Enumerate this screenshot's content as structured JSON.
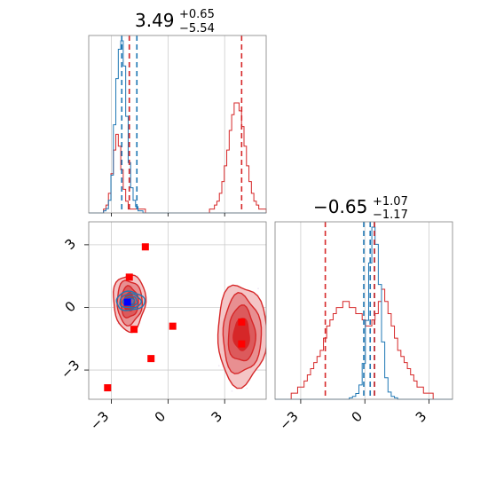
{
  "chart_data": {
    "type": "corner",
    "colors": {
      "red": "#d62728",
      "blue": "#1f77b4",
      "marker": "#ff0000",
      "marker_blue": "#0000ff"
    },
    "parameters": [
      {
        "title_value": "3.49",
        "title_plus": "+0.65",
        "title_minus": "−5.54"
      },
      {
        "title_value": "−0.65",
        "title_plus": "+1.07",
        "title_minus": "−1.17"
      }
    ],
    "panels": [
      {
        "id": "hist-x",
        "type": "histogram",
        "xlim": [
          -4.2,
          5.2
        ],
        "grid_x": [
          -3,
          0,
          3
        ],
        "red_quantiles": [
          -2.05,
          3.9
        ],
        "blue_quantiles": [
          -2.45,
          -2.05,
          -1.65
        ],
        "red_hist": {
          "x0": -4.2,
          "x1": 5.2,
          "counts": [
            0,
            0,
            0,
            0,
            0,
            0,
            1,
            2,
            5,
            10,
            16,
            20,
            17,
            11,
            6,
            3,
            1,
            1,
            1,
            1,
            1,
            1,
            1,
            0,
            0,
            0,
            0,
            0,
            0,
            0,
            0,
            0,
            0,
            0,
            0,
            0,
            0,
            0,
            0,
            0,
            0,
            0,
            0,
            0,
            0,
            0,
            0,
            0,
            0,
            1,
            1,
            2,
            3,
            5,
            8,
            12,
            16,
            21,
            25,
            28,
            28,
            26,
            22,
            17,
            12,
            8,
            5,
            3,
            2,
            1,
            1,
            1
          ]
        },
        "blue_hist": {
          "x0": -4.2,
          "x1": 5.2,
          "counts": [
            0,
            0,
            0,
            0,
            0,
            0,
            1,
            2,
            6,
            18,
            42,
            64,
            78,
            82,
            70,
            46,
            24,
            12,
            6,
            3,
            1,
            1,
            0,
            0,
            0,
            0,
            0,
            0,
            0,
            0,
            0,
            0,
            0,
            0,
            0,
            0,
            0,
            0,
            0,
            0,
            0,
            0,
            0,
            0,
            0,
            0,
            0,
            0,
            0,
            0,
            0,
            0,
            0,
            0,
            0,
            0,
            0,
            0,
            0,
            0,
            0,
            0,
            0,
            0,
            0,
            0,
            0,
            0,
            0,
            0,
            0,
            0
          ]
        }
      },
      {
        "id": "scatter-xy",
        "type": "2d-density",
        "xlim": [
          -4.2,
          5.2
        ],
        "ylim": [
          -4.4,
          4.1
        ],
        "x_ticks": [
          -3,
          0,
          3
        ],
        "y_ticks": [
          -3,
          0,
          3
        ],
        "x_tick_labels": [
          "−3",
          "0",
          "3"
        ],
        "y_tick_labels": [
          "−3",
          "0",
          "3"
        ],
        "red_modes": [
          {
            "cx": -2.05,
            "cy": 0.25,
            "sx": 0.85,
            "sy": 1.35
          },
          {
            "cx": 3.9,
            "cy": -1.3,
            "sx": 1.3,
            "sy": 2.4
          }
        ],
        "blue_mode": {
          "cx": -2.0,
          "cy": 0.3,
          "sx": 0.75,
          "sy": 0.45
        },
        "red_markers": [
          {
            "x": -1.2,
            "y": 2.9
          },
          {
            "x": -2.05,
            "y": 1.45
          },
          {
            "x": -1.8,
            "y": -1.05
          },
          {
            "x": 0.25,
            "y": -0.9
          },
          {
            "x": -0.9,
            "y": -2.45
          },
          {
            "x": -3.2,
            "y": -3.85
          },
          {
            "x": 3.9,
            "y": -0.7
          },
          {
            "x": 3.9,
            "y": -1.75
          }
        ],
        "blue_marker": {
          "x": -2.15,
          "y": 0.25
        }
      },
      {
        "id": "hist-y",
        "type": "histogram",
        "xlim": [
          -4.2,
          4.1
        ],
        "x_ticks": [
          -3,
          0,
          3
        ],
        "x_tick_labels": [
          "−3",
          "0",
          "3"
        ],
        "red_quantiles": [
          -1.85,
          0.45
        ],
        "blue_quantiles": [
          -0.05,
          0.25,
          0.45
        ],
        "red_hist": {
          "x0": -4.2,
          "x1": 4.1,
          "counts": [
            0,
            0,
            0,
            0,
            0,
            1,
            1,
            2,
            2,
            3,
            4,
            5,
            6,
            7,
            8,
            10,
            12,
            13,
            14,
            15,
            15,
            16,
            16,
            15,
            15,
            14,
            14,
            13,
            12,
            12,
            13,
            14,
            16,
            18,
            16,
            14,
            12,
            10,
            8,
            7,
            6,
            5,
            4,
            3,
            2,
            2,
            1,
            1,
            1,
            0,
            0,
            0,
            0,
            0,
            0
          ]
        },
        "blue_hist": {
          "x0": -4.2,
          "x1": 4.1,
          "counts": [
            0,
            0,
            0,
            0,
            0,
            0,
            0,
            0,
            0,
            0,
            0,
            0,
            0,
            0,
            0,
            0,
            0,
            0,
            0,
            0,
            0,
            0,
            0,
            1,
            2,
            4,
            10,
            25,
            55,
            95,
            120,
            108,
            80,
            40,
            15,
            5,
            2,
            1,
            0,
            0,
            0,
            0,
            0,
            0,
            0,
            0,
            0,
            0,
            0,
            0,
            0,
            0,
            0,
            0,
            0
          ]
        }
      }
    ]
  }
}
